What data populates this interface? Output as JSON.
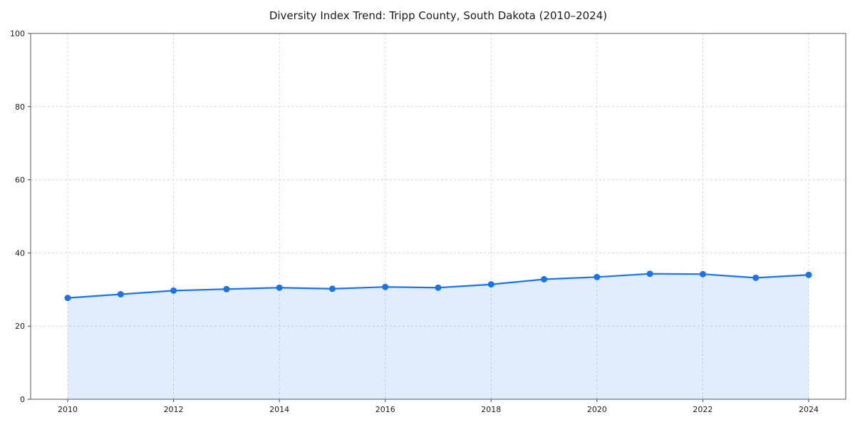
{
  "chart_data": {
    "type": "line",
    "title": "Diversity Index Trend: Tripp County, South Dakota (2010–2024)",
    "x": [
      2010,
      2011,
      2012,
      2013,
      2014,
      2015,
      2016,
      2017,
      2018,
      2019,
      2020,
      2021,
      2022,
      2023,
      2024
    ],
    "series": [
      {
        "name": "Diversity Index",
        "values": [
          27.7,
          28.7,
          29.7,
          30.1,
          30.5,
          30.2,
          30.7,
          30.5,
          31.4,
          32.8,
          33.4,
          34.3,
          34.2,
          33.2,
          34.0
        ]
      }
    ],
    "xlabel": "",
    "ylabel": "",
    "ylim": [
      0,
      100
    ],
    "yticks": [
      0,
      20,
      40,
      60,
      80,
      100
    ],
    "xticks": [
      2010,
      2012,
      2014,
      2016,
      2018,
      2020,
      2022,
      2024
    ],
    "grid": true,
    "legend": "none",
    "line_color": "#1a73e8",
    "fill_color": "rgba(26,115,232,0.13)",
    "marker": "circle"
  }
}
